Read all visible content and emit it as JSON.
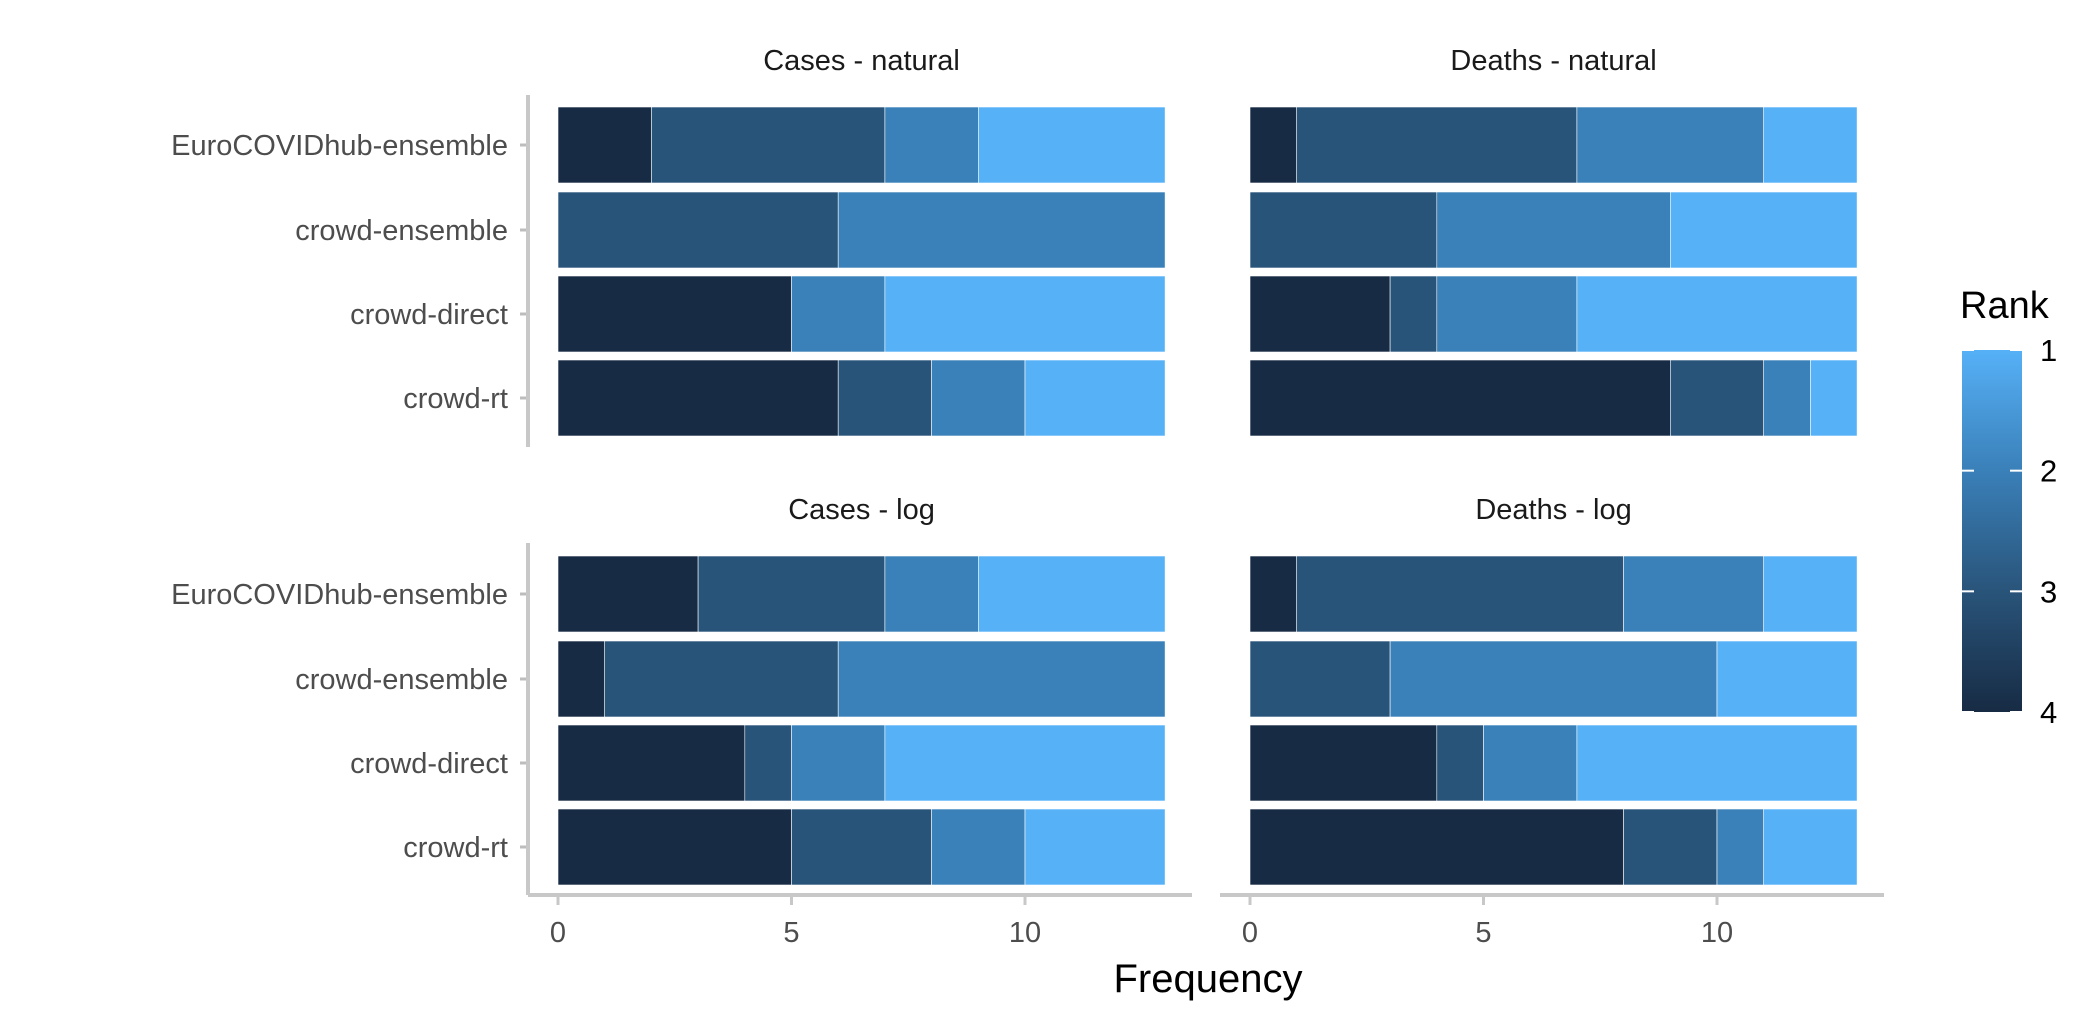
{
  "chart_data": {
    "type": "bar",
    "orientation": "horizontal",
    "stacked": true,
    "xlabel": "Frequency",
    "xlim": [
      0,
      13
    ],
    "xticks": [
      0,
      5,
      10
    ],
    "models": [
      "EuroCOVIDhub-ensemble",
      "crowd-ensemble",
      "crowd-direct",
      "crowd-rt"
    ],
    "legend": {
      "title": "Rank",
      "position": "right",
      "labels": [
        "1",
        "2",
        "3",
        "4"
      ],
      "colors": {
        "1": "#56B1F7",
        "2": "#3A80B9",
        "3": "#29547A",
        "4": "#172B44"
      }
    },
    "stack_order": [
      "4",
      "3",
      "2",
      "1"
    ],
    "grid": false,
    "facets": [
      {
        "title": "Cases - natural",
        "bars": [
          {
            "model": "EuroCOVIDhub-ensemble",
            "rank_counts": {
              "1": 4,
              "2": 2,
              "3": 5,
              "4": 2
            }
          },
          {
            "model": "crowd-ensemble",
            "rank_counts": {
              "1": 0,
              "2": 7,
              "3": 6,
              "4": 0
            }
          },
          {
            "model": "crowd-direct",
            "rank_counts": {
              "1": 6,
              "2": 2,
              "3": 0,
              "4": 5
            }
          },
          {
            "model": "crowd-rt",
            "rank_counts": {
              "1": 3,
              "2": 2,
              "3": 2,
              "4": 6
            }
          }
        ]
      },
      {
        "title": "Deaths - natural",
        "bars": [
          {
            "model": "EuroCOVIDhub-ensemble",
            "rank_counts": {
              "1": 2,
              "2": 4,
              "3": 6,
              "4": 1
            }
          },
          {
            "model": "crowd-ensemble",
            "rank_counts": {
              "1": 4,
              "2": 5,
              "3": 4,
              "4": 0
            }
          },
          {
            "model": "crowd-direct",
            "rank_counts": {
              "1": 6,
              "2": 3,
              "3": 1,
              "4": 3
            }
          },
          {
            "model": "crowd-rt",
            "rank_counts": {
              "1": 1,
              "2": 1,
              "3": 2,
              "4": 9
            }
          }
        ]
      },
      {
        "title": "Cases - log",
        "bars": [
          {
            "model": "EuroCOVIDhub-ensemble",
            "rank_counts": {
              "1": 4,
              "2": 2,
              "3": 4,
              "4": 3
            }
          },
          {
            "model": "crowd-ensemble",
            "rank_counts": {
              "1": 0,
              "2": 7,
              "3": 5,
              "4": 1
            }
          },
          {
            "model": "crowd-direct",
            "rank_counts": {
              "1": 6,
              "2": 2,
              "3": 1,
              "4": 4
            }
          },
          {
            "model": "crowd-rt",
            "rank_counts": {
              "1": 3,
              "2": 2,
              "3": 3,
              "4": 5
            }
          }
        ]
      },
      {
        "title": "Deaths - log",
        "bars": [
          {
            "model": "EuroCOVIDhub-ensemble",
            "rank_counts": {
              "1": 2,
              "2": 3,
              "3": 7,
              "4": 1
            }
          },
          {
            "model": "crowd-ensemble",
            "rank_counts": {
              "1": 3,
              "2": 7,
              "3": 3,
              "4": 0
            }
          },
          {
            "model": "crowd-direct",
            "rank_counts": {
              "1": 6,
              "2": 2,
              "3": 1,
              "4": 4
            }
          },
          {
            "model": "crowd-rt",
            "rank_counts": {
              "1": 2,
              "2": 1,
              "3": 2,
              "4": 8
            }
          }
        ]
      }
    ]
  }
}
